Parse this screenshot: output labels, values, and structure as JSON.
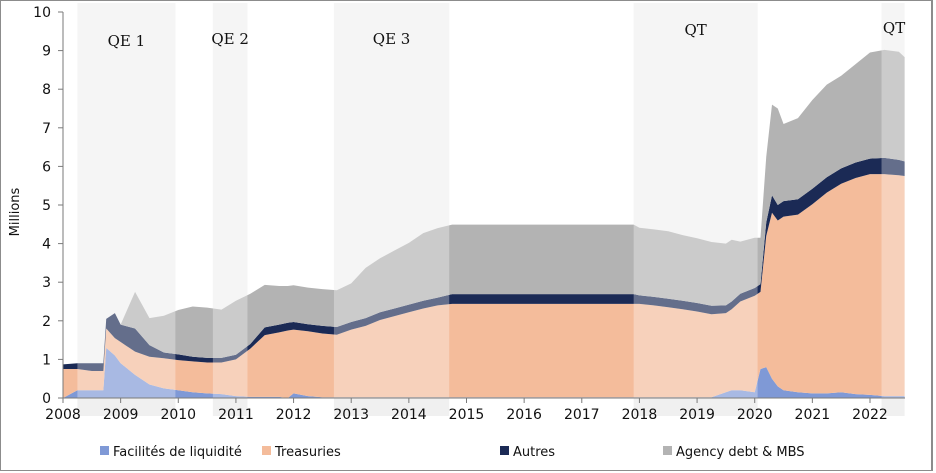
{
  "chart_data": {
    "type": "area",
    "stacked": true,
    "title": "",
    "xlabel": "",
    "ylabel": "Millions",
    "xlim": [
      2008,
      2022.6
    ],
    "ylim": [
      0,
      10
    ],
    "x_ticks": [
      "2008",
      "2009",
      "2010",
      "2011",
      "2012",
      "2013",
      "2014",
      "2015",
      "2016",
      "2017",
      "2018",
      "2019",
      "2020",
      "2021",
      "2022"
    ],
    "y_ticks": [
      "0",
      "1",
      "2",
      "3",
      "4",
      "5",
      "6",
      "7",
      "8",
      "9",
      "10"
    ],
    "grid": false,
    "legend_position": "bottom",
    "shaded_periods": [
      {
        "label": "QE 1",
        "start": 2008.25,
        "end": 2009.95
      },
      {
        "label": "QE 2",
        "start": 2010.6,
        "end": 2011.2
      },
      {
        "label": "QE 3",
        "start": 2012.7,
        "end": 2014.7
      },
      {
        "label": "QT",
        "start": 2017.9,
        "end": 2020.05
      },
      {
        "label": "QT",
        "start": 2022.2,
        "end": 2022.6
      }
    ],
    "x": [
      2008.0,
      2008.25,
      2008.5,
      2008.7,
      2008.75,
      2008.9,
      2009.0,
      2009.25,
      2009.5,
      2009.75,
      2010.0,
      2010.25,
      2010.5,
      2010.75,
      2011.0,
      2011.25,
      2011.5,
      2011.75,
      2011.9,
      2012.0,
      2012.25,
      2012.5,
      2012.75,
      2013.0,
      2013.25,
      2013.5,
      2013.75,
      2014.0,
      2014.25,
      2014.5,
      2014.75,
      2015.0,
      2015.5,
      2016.0,
      2016.5,
      2017.0,
      2017.5,
      2017.9,
      2018.0,
      2018.25,
      2018.5,
      2018.75,
      2019.0,
      2019.25,
      2019.5,
      2019.6,
      2019.75,
      2020.0,
      2020.1,
      2020.2,
      2020.3,
      2020.4,
      2020.5,
      2020.75,
      2021.0,
      2021.25,
      2021.5,
      2021.75,
      2022.0,
      2022.25,
      2022.5,
      2022.6
    ],
    "series": [
      {
        "name": "Facilités de liquidité",
        "color": "#7f99d6",
        "values": [
          0.0,
          0.2,
          0.2,
          0.2,
          1.3,
          1.1,
          0.9,
          0.6,
          0.35,
          0.25,
          0.2,
          0.15,
          0.12,
          0.1,
          0.05,
          0.03,
          0.03,
          0.03,
          0.0,
          0.12,
          0.05,
          0.02,
          0.02,
          0.02,
          0.02,
          0.02,
          0.02,
          0.02,
          0.02,
          0.02,
          0.02,
          0.02,
          0.02,
          0.02,
          0.02,
          0.02,
          0.02,
          0.02,
          0.02,
          0.02,
          0.02,
          0.02,
          0.02,
          0.02,
          0.15,
          0.2,
          0.2,
          0.15,
          0.75,
          0.8,
          0.5,
          0.3,
          0.2,
          0.15,
          0.12,
          0.12,
          0.15,
          0.1,
          0.08,
          0.05,
          0.05,
          0.05
        ]
      },
      {
        "name": "Treasuries",
        "color": "#f4bc9b",
        "values": [
          0.75,
          0.55,
          0.5,
          0.5,
          0.5,
          0.45,
          0.55,
          0.6,
          0.72,
          0.78,
          0.78,
          0.8,
          0.8,
          0.82,
          0.95,
          1.25,
          1.6,
          1.67,
          1.75,
          1.65,
          1.68,
          1.65,
          1.62,
          1.75,
          1.85,
          2.0,
          2.1,
          2.2,
          2.3,
          2.38,
          2.42,
          2.42,
          2.42,
          2.42,
          2.42,
          2.42,
          2.42,
          2.42,
          2.42,
          2.38,
          2.33,
          2.28,
          2.22,
          2.15,
          2.05,
          2.1,
          2.3,
          2.5,
          2.0,
          3.4,
          4.3,
          4.3,
          4.5,
          4.6,
          4.9,
          5.2,
          5.4,
          5.6,
          5.72,
          5.75,
          5.72,
          5.7
        ]
      },
      {
        "name": "Autres",
        "color": "#1b2a55",
        "values": [
          0.12,
          0.15,
          0.2,
          0.2,
          0.25,
          0.65,
          0.45,
          0.6,
          0.3,
          0.15,
          0.15,
          0.12,
          0.12,
          0.12,
          0.12,
          0.12,
          0.2,
          0.2,
          0.2,
          0.2,
          0.18,
          0.2,
          0.2,
          0.2,
          0.2,
          0.2,
          0.2,
          0.2,
          0.2,
          0.2,
          0.25,
          0.25,
          0.25,
          0.25,
          0.25,
          0.25,
          0.25,
          0.25,
          0.22,
          0.22,
          0.22,
          0.22,
          0.22,
          0.22,
          0.2,
          0.2,
          0.2,
          0.2,
          0.2,
          0.35,
          0.45,
          0.4,
          0.4,
          0.4,
          0.4,
          0.4,
          0.4,
          0.4,
          0.4,
          0.42,
          0.4,
          0.38
        ]
      },
      {
        "name": "Agency debt & MBS",
        "color": "#b3b3b3",
        "values": [
          0.0,
          0.0,
          0.0,
          0.0,
          0.0,
          0.0,
          0.0,
          0.95,
          0.7,
          0.95,
          1.15,
          1.3,
          1.3,
          1.25,
          1.4,
          1.3,
          1.1,
          1.0,
          0.95,
          0.95,
          0.95,
          0.95,
          0.95,
          1.0,
          1.3,
          1.4,
          1.5,
          1.6,
          1.75,
          1.8,
          1.8,
          1.8,
          1.8,
          1.8,
          1.8,
          1.8,
          1.8,
          1.8,
          1.75,
          1.75,
          1.75,
          1.7,
          1.68,
          1.65,
          1.6,
          1.6,
          1.35,
          1.3,
          1.2,
          1.7,
          2.35,
          2.5,
          2.0,
          2.1,
          2.3,
          2.4,
          2.4,
          2.55,
          2.75,
          2.8,
          2.8,
          2.7
        ]
      }
    ]
  }
}
